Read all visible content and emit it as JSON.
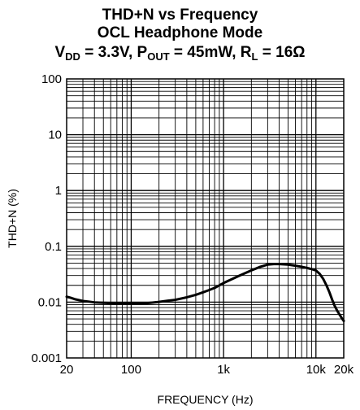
{
  "chart_data": {
    "type": "line",
    "title_line1": "THD+N vs Frequency",
    "title_line2": "OCL Headphone Mode",
    "subtitle": {
      "vdd": "V",
      "vdd_sub": "DD",
      "vdd_val": " = 3.3V, ",
      "pout": "P",
      "pout_sub": "OUT",
      "pout_val": " = 45mW, ",
      "rl": "R",
      "rl_sub": "L",
      "rl_val": " = 16Ω"
    },
    "xlabel": "FREQUENCY (Hz)",
    "ylabel": "THD+N (%)",
    "x_scale": "log",
    "y_scale": "log",
    "xlim": [
      20,
      20000
    ],
    "ylim": [
      0.001,
      100
    ],
    "x_ticks": [
      {
        "value": 20,
        "label": "20"
      },
      {
        "value": 100,
        "label": "100"
      },
      {
        "value": 1000,
        "label": "1k"
      },
      {
        "value": 10000,
        "label": "10k"
      },
      {
        "value": 20000,
        "label": "20k"
      }
    ],
    "y_ticks": [
      {
        "value": 100,
        "label": "100"
      },
      {
        "value": 10,
        "label": "10"
      },
      {
        "value": 1,
        "label": "1"
      },
      {
        "value": 0.1,
        "label": "0.1"
      },
      {
        "value": 0.01,
        "label": "0.01"
      },
      {
        "value": 0.001,
        "label": "0.001"
      }
    ],
    "grid": true,
    "series": [
      {
        "x": [
          20,
          22,
          25,
          30,
          35,
          40,
          50,
          60,
          70,
          80,
          100,
          150,
          200,
          250,
          300,
          400,
          500,
          600,
          700,
          800,
          1000,
          1500,
          2000,
          2500,
          3000,
          3500,
          4000,
          5000,
          6000,
          7000,
          8000,
          9000,
          10000,
          11000,
          12000,
          13000,
          14000,
          15000,
          16000,
          17000,
          18000,
          19000,
          20000
        ],
        "y": [
          0.0125,
          0.012,
          0.0112,
          0.0105,
          0.0102,
          0.0099,
          0.0097,
          0.0096,
          0.0095,
          0.0095,
          0.0095,
          0.0096,
          0.0101,
          0.0106,
          0.011,
          0.0122,
          0.0135,
          0.015,
          0.0165,
          0.018,
          0.022,
          0.03,
          0.037,
          0.043,
          0.047,
          0.048,
          0.048,
          0.047,
          0.045,
          0.043,
          0.041,
          0.039,
          0.037,
          0.032,
          0.026,
          0.02,
          0.015,
          0.011,
          0.0085,
          0.007,
          0.006,
          0.0052,
          0.0046
        ]
      }
    ]
  }
}
